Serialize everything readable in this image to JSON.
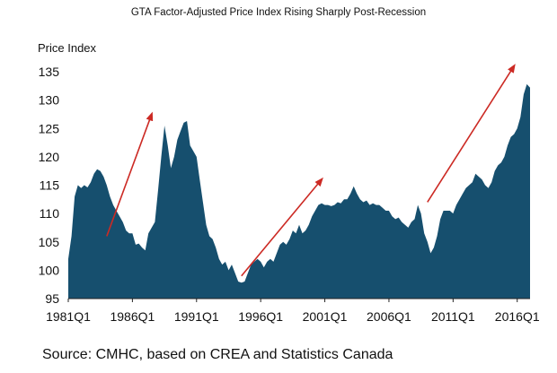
{
  "chart_data": {
    "type": "area",
    "title": "GTA Factor-Adjusted Price Index Rising Sharply Post-Recession",
    "ylabel": "Price Index",
    "xlabel": "",
    "ylim": [
      95,
      135
    ],
    "yticks": [
      95,
      100,
      105,
      110,
      115,
      120,
      125,
      130,
      135
    ],
    "xticks": [
      "1981Q1",
      "1986Q1",
      "1991Q1",
      "1996Q1",
      "2001Q1",
      "2006Q1",
      "2011Q1",
      "2016Q1"
    ],
    "x_start": 1981.0,
    "x_end": 2017.0,
    "grid": false,
    "fill_color": "#164f6e",
    "arrow_color": "#cc2a24",
    "series": [
      {
        "name": "Price Index",
        "points": [
          [
            1981.0,
            102
          ],
          [
            1981.25,
            106
          ],
          [
            1981.5,
            113
          ],
          [
            1981.75,
            115
          ],
          [
            1982.0,
            114.5
          ],
          [
            1982.25,
            115
          ],
          [
            1982.5,
            114.6
          ],
          [
            1982.75,
            115.5
          ],
          [
            1983.0,
            117
          ],
          [
            1983.25,
            117.8
          ],
          [
            1983.5,
            117.5
          ],
          [
            1983.75,
            116.5
          ],
          [
            1984.0,
            115
          ],
          [
            1984.25,
            113
          ],
          [
            1984.5,
            111.5
          ],
          [
            1984.75,
            110.5
          ],
          [
            1985.0,
            109.5
          ],
          [
            1985.25,
            108.5
          ],
          [
            1985.5,
            107
          ],
          [
            1985.75,
            106.5
          ],
          [
            1986.0,
            106.5
          ],
          [
            1986.25,
            104.5
          ],
          [
            1986.5,
            104.7
          ],
          [
            1986.75,
            104
          ],
          [
            1987.0,
            103.5
          ],
          [
            1987.25,
            106.5
          ],
          [
            1987.5,
            107.5
          ],
          [
            1987.75,
            108.5
          ],
          [
            1988.0,
            114
          ],
          [
            1988.25,
            120
          ],
          [
            1988.5,
            125.5
          ],
          [
            1988.75,
            122
          ],
          [
            1989.0,
            118
          ],
          [
            1989.25,
            120
          ],
          [
            1989.5,
            123
          ],
          [
            1989.75,
            124.5
          ],
          [
            1990.0,
            126
          ],
          [
            1990.25,
            126.3
          ],
          [
            1990.5,
            122
          ],
          [
            1990.75,
            121
          ],
          [
            1991.0,
            120
          ],
          [
            1991.25,
            116
          ],
          [
            1991.5,
            112
          ],
          [
            1991.75,
            108
          ],
          [
            1992.0,
            106
          ],
          [
            1992.25,
            105.5
          ],
          [
            1992.5,
            104
          ],
          [
            1992.75,
            102
          ],
          [
            1993.0,
            101
          ],
          [
            1993.25,
            101.5
          ],
          [
            1993.5,
            100
          ],
          [
            1993.75,
            101
          ],
          [
            1994.0,
            99.5
          ],
          [
            1994.25,
            98
          ],
          [
            1994.5,
            97.8
          ],
          [
            1994.75,
            98
          ],
          [
            1995.0,
            99.5
          ],
          [
            1995.25,
            101
          ],
          [
            1995.5,
            101.5
          ],
          [
            1995.75,
            102
          ],
          [
            1996.0,
            101.5
          ],
          [
            1996.25,
            100.5
          ],
          [
            1996.5,
            101.5
          ],
          [
            1996.75,
            102
          ],
          [
            1997.0,
            101.5
          ],
          [
            1997.25,
            103
          ],
          [
            1997.5,
            104.5
          ],
          [
            1997.75,
            105
          ],
          [
            1998.0,
            104.5
          ],
          [
            1998.25,
            105.5
          ],
          [
            1998.5,
            107
          ],
          [
            1998.75,
            106.5
          ],
          [
            1999.0,
            108
          ],
          [
            1999.25,
            106.5
          ],
          [
            1999.5,
            107
          ],
          [
            1999.75,
            108
          ],
          [
            2000.0,
            109.5
          ],
          [
            2000.25,
            110.5
          ],
          [
            2000.5,
            111.5
          ],
          [
            2000.75,
            111.8
          ],
          [
            2001.0,
            111.5
          ],
          [
            2001.25,
            111.5
          ],
          [
            2001.5,
            111.3
          ],
          [
            2001.75,
            111.5
          ],
          [
            2002.0,
            112
          ],
          [
            2002.25,
            111.8
          ],
          [
            2002.5,
            112.5
          ],
          [
            2002.75,
            112.5
          ],
          [
            2003.0,
            113.5
          ],
          [
            2003.25,
            114.8
          ],
          [
            2003.5,
            113.5
          ],
          [
            2003.75,
            112.5
          ],
          [
            2004.0,
            112
          ],
          [
            2004.25,
            112.3
          ],
          [
            2004.5,
            111.5
          ],
          [
            2004.75,
            111.8
          ],
          [
            2005.0,
            111.5
          ],
          [
            2005.25,
            111.5
          ],
          [
            2005.5,
            111
          ],
          [
            2005.75,
            110.5
          ],
          [
            2006.0,
            110.5
          ],
          [
            2006.25,
            109.5
          ],
          [
            2006.5,
            109
          ],
          [
            2006.75,
            109.3
          ],
          [
            2007.0,
            108.5
          ],
          [
            2007.25,
            108
          ],
          [
            2007.5,
            107.5
          ],
          [
            2007.75,
            108.5
          ],
          [
            2008.0,
            109
          ],
          [
            2008.25,
            111.5
          ],
          [
            2008.5,
            110
          ],
          [
            2008.75,
            106.5
          ],
          [
            2009.0,
            105
          ],
          [
            2009.25,
            103
          ],
          [
            2009.5,
            104
          ],
          [
            2009.75,
            106
          ],
          [
            2010.0,
            109
          ],
          [
            2010.25,
            110.5
          ],
          [
            2010.5,
            110.5
          ],
          [
            2010.75,
            110.5
          ],
          [
            2011.0,
            110
          ],
          [
            2011.25,
            111.5
          ],
          [
            2011.5,
            112.5
          ],
          [
            2011.75,
            113.5
          ],
          [
            2012.0,
            114.5
          ],
          [
            2012.25,
            115
          ],
          [
            2012.5,
            115.5
          ],
          [
            2012.75,
            117
          ],
          [
            2013.0,
            116.5
          ],
          [
            2013.25,
            116
          ],
          [
            2013.5,
            115
          ],
          [
            2013.75,
            114.5
          ],
          [
            2014.0,
            115.5
          ],
          [
            2014.25,
            117.5
          ],
          [
            2014.5,
            118.5
          ],
          [
            2014.75,
            119
          ],
          [
            2015.0,
            120
          ],
          [
            2015.25,
            122
          ],
          [
            2015.5,
            123.5
          ],
          [
            2015.75,
            124
          ],
          [
            2016.0,
            125
          ],
          [
            2016.25,
            127
          ],
          [
            2016.5,
            131
          ],
          [
            2016.75,
            132.8
          ],
          [
            2017.0,
            132.2
          ]
        ]
      }
    ],
    "annotations": [
      {
        "type": "arrow",
        "from": [
          1984.0,
          106
        ],
        "to": [
          1987.5,
          127.5
        ]
      },
      {
        "type": "arrow",
        "from": [
          1994.5,
          99
        ],
        "to": [
          2000.75,
          116
        ]
      },
      {
        "type": "arrow",
        "from": [
          2009.0,
          112
        ],
        "to": [
          2015.75,
          136
        ]
      }
    ],
    "source": "Source: CMHC, based on CREA and Statistics Canada"
  }
}
